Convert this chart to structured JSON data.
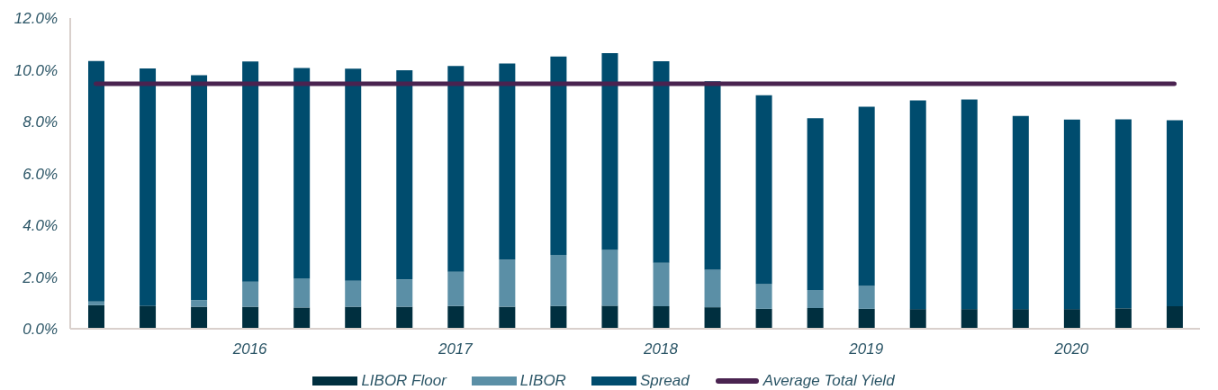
{
  "chart_data": {
    "type": "bar",
    "stacked": true,
    "categories": [
      null,
      null,
      null,
      "2016",
      null,
      null,
      null,
      "2017",
      null,
      null,
      null,
      "2018",
      null,
      null,
      null,
      "2019",
      null,
      null,
      null,
      "2020",
      null,
      null
    ],
    "series": [
      {
        "name": "LIBOR Floor",
        "color": "#002f3f",
        "values": [
          0.91,
          0.89,
          0.85,
          0.85,
          0.82,
          0.85,
          0.85,
          0.88,
          0.85,
          0.88,
          0.89,
          0.87,
          0.83,
          0.77,
          0.8,
          0.77,
          0.76,
          0.76,
          0.76,
          0.76,
          0.79,
          0.87
        ]
      },
      {
        "name": "LIBOR",
        "color": "#5b8fa6",
        "values": [
          0.14,
          0,
          0.26,
          0.97,
          1.11,
          1.0,
          1.06,
          1.32,
          1.82,
          1.97,
          2.15,
          1.68,
          1.45,
          0.95,
          0.7,
          0.88,
          0,
          0,
          0,
          0,
          0,
          0
        ]
      },
      {
        "name": "Spread",
        "color": "#004c6e",
        "values": [
          9.29,
          9.16,
          8.68,
          8.5,
          8.14,
          8.19,
          8.07,
          7.95,
          7.57,
          7.66,
          7.6,
          7.78,
          7.28,
          7.3,
          6.63,
          6.92,
          8.06,
          8.09,
          7.46,
          7.32,
          7.3,
          7.18
        ]
      },
      {
        "name": "Average Total Yield",
        "type": "line",
        "color": "#4a2350",
        "values": [
          9.46,
          9.46,
          9.46,
          9.46,
          9.46,
          9.46,
          9.46,
          9.46,
          9.46,
          9.46,
          9.46,
          9.46,
          9.46,
          9.46,
          9.46,
          9.46,
          9.46,
          9.46,
          9.46,
          9.46,
          9.46,
          9.46
        ]
      }
    ],
    "ylim": [
      0,
      12
    ],
    "yticks": [
      {
        "value": 0,
        "label": "0.0%"
      },
      {
        "value": 2,
        "label": "2.0%"
      },
      {
        "value": 4,
        "label": "4.0%"
      },
      {
        "value": 6,
        "label": "6.0%"
      },
      {
        "value": 8,
        "label": "8.0%"
      },
      {
        "value": 10,
        "label": "10.0%"
      },
      {
        "value": 12,
        "label": "12.0%"
      }
    ],
    "grid": false,
    "legend": "bottom",
    "marker": "none",
    "line_style": "solid"
  }
}
